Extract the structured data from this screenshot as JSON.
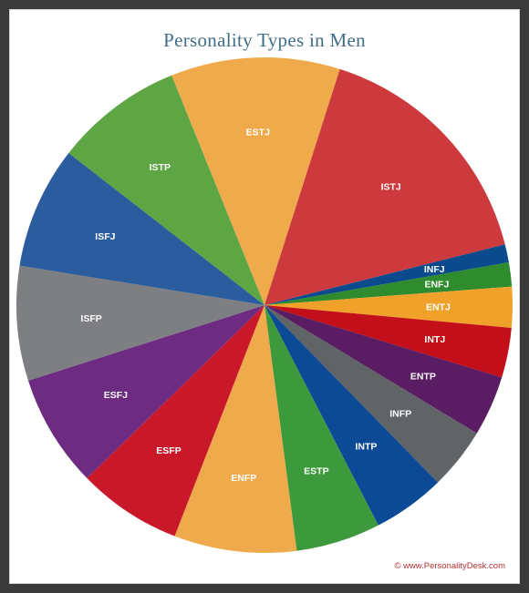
{
  "chart_data": {
    "type": "pie",
    "title": "Personality Types in Men",
    "start_angle_deg": -22,
    "slices": [
      {
        "label": "ESTJ",
        "value": 11.2,
        "color": "#efaa4c"
      },
      {
        "label": "ISTJ",
        "value": 16.4,
        "color": "#cc3a3e"
      },
      {
        "label": "INFJ",
        "value": 1.2,
        "color": "#0b4a8c"
      },
      {
        "label": "ENFJ",
        "value": 1.6,
        "color": "#2e8b2e"
      },
      {
        "label": "ENTJ",
        "value": 2.7,
        "color": "#f0a12a"
      },
      {
        "label": "INTJ",
        "value": 3.3,
        "color": "#c20f1a"
      },
      {
        "label": "ENTP",
        "value": 4.0,
        "color": "#5a1c62"
      },
      {
        "label": "INFP",
        "value": 4.1,
        "color": "#616467"
      },
      {
        "label": "INTP",
        "value": 4.8,
        "color": "#0d4a96"
      },
      {
        "label": "ESTP",
        "value": 5.6,
        "color": "#3c9a3c"
      },
      {
        "label": "ENFP",
        "value": 8.1,
        "color": "#efaa4c"
      },
      {
        "label": "ESFP",
        "value": 6.9,
        "color": "#c8182a"
      },
      {
        "label": "ESFJ",
        "value": 7.5,
        "color": "#6d2c82"
      },
      {
        "label": "ISFP",
        "value": 7.6,
        "color": "#7d7f83"
      },
      {
        "label": "ISFJ",
        "value": 8.1,
        "color": "#2a5c9e"
      },
      {
        "label": "ISTP",
        "value": 8.5,
        "color": "#5ea544"
      }
    ]
  },
  "credit": "© www.PersonalityDesk.com"
}
